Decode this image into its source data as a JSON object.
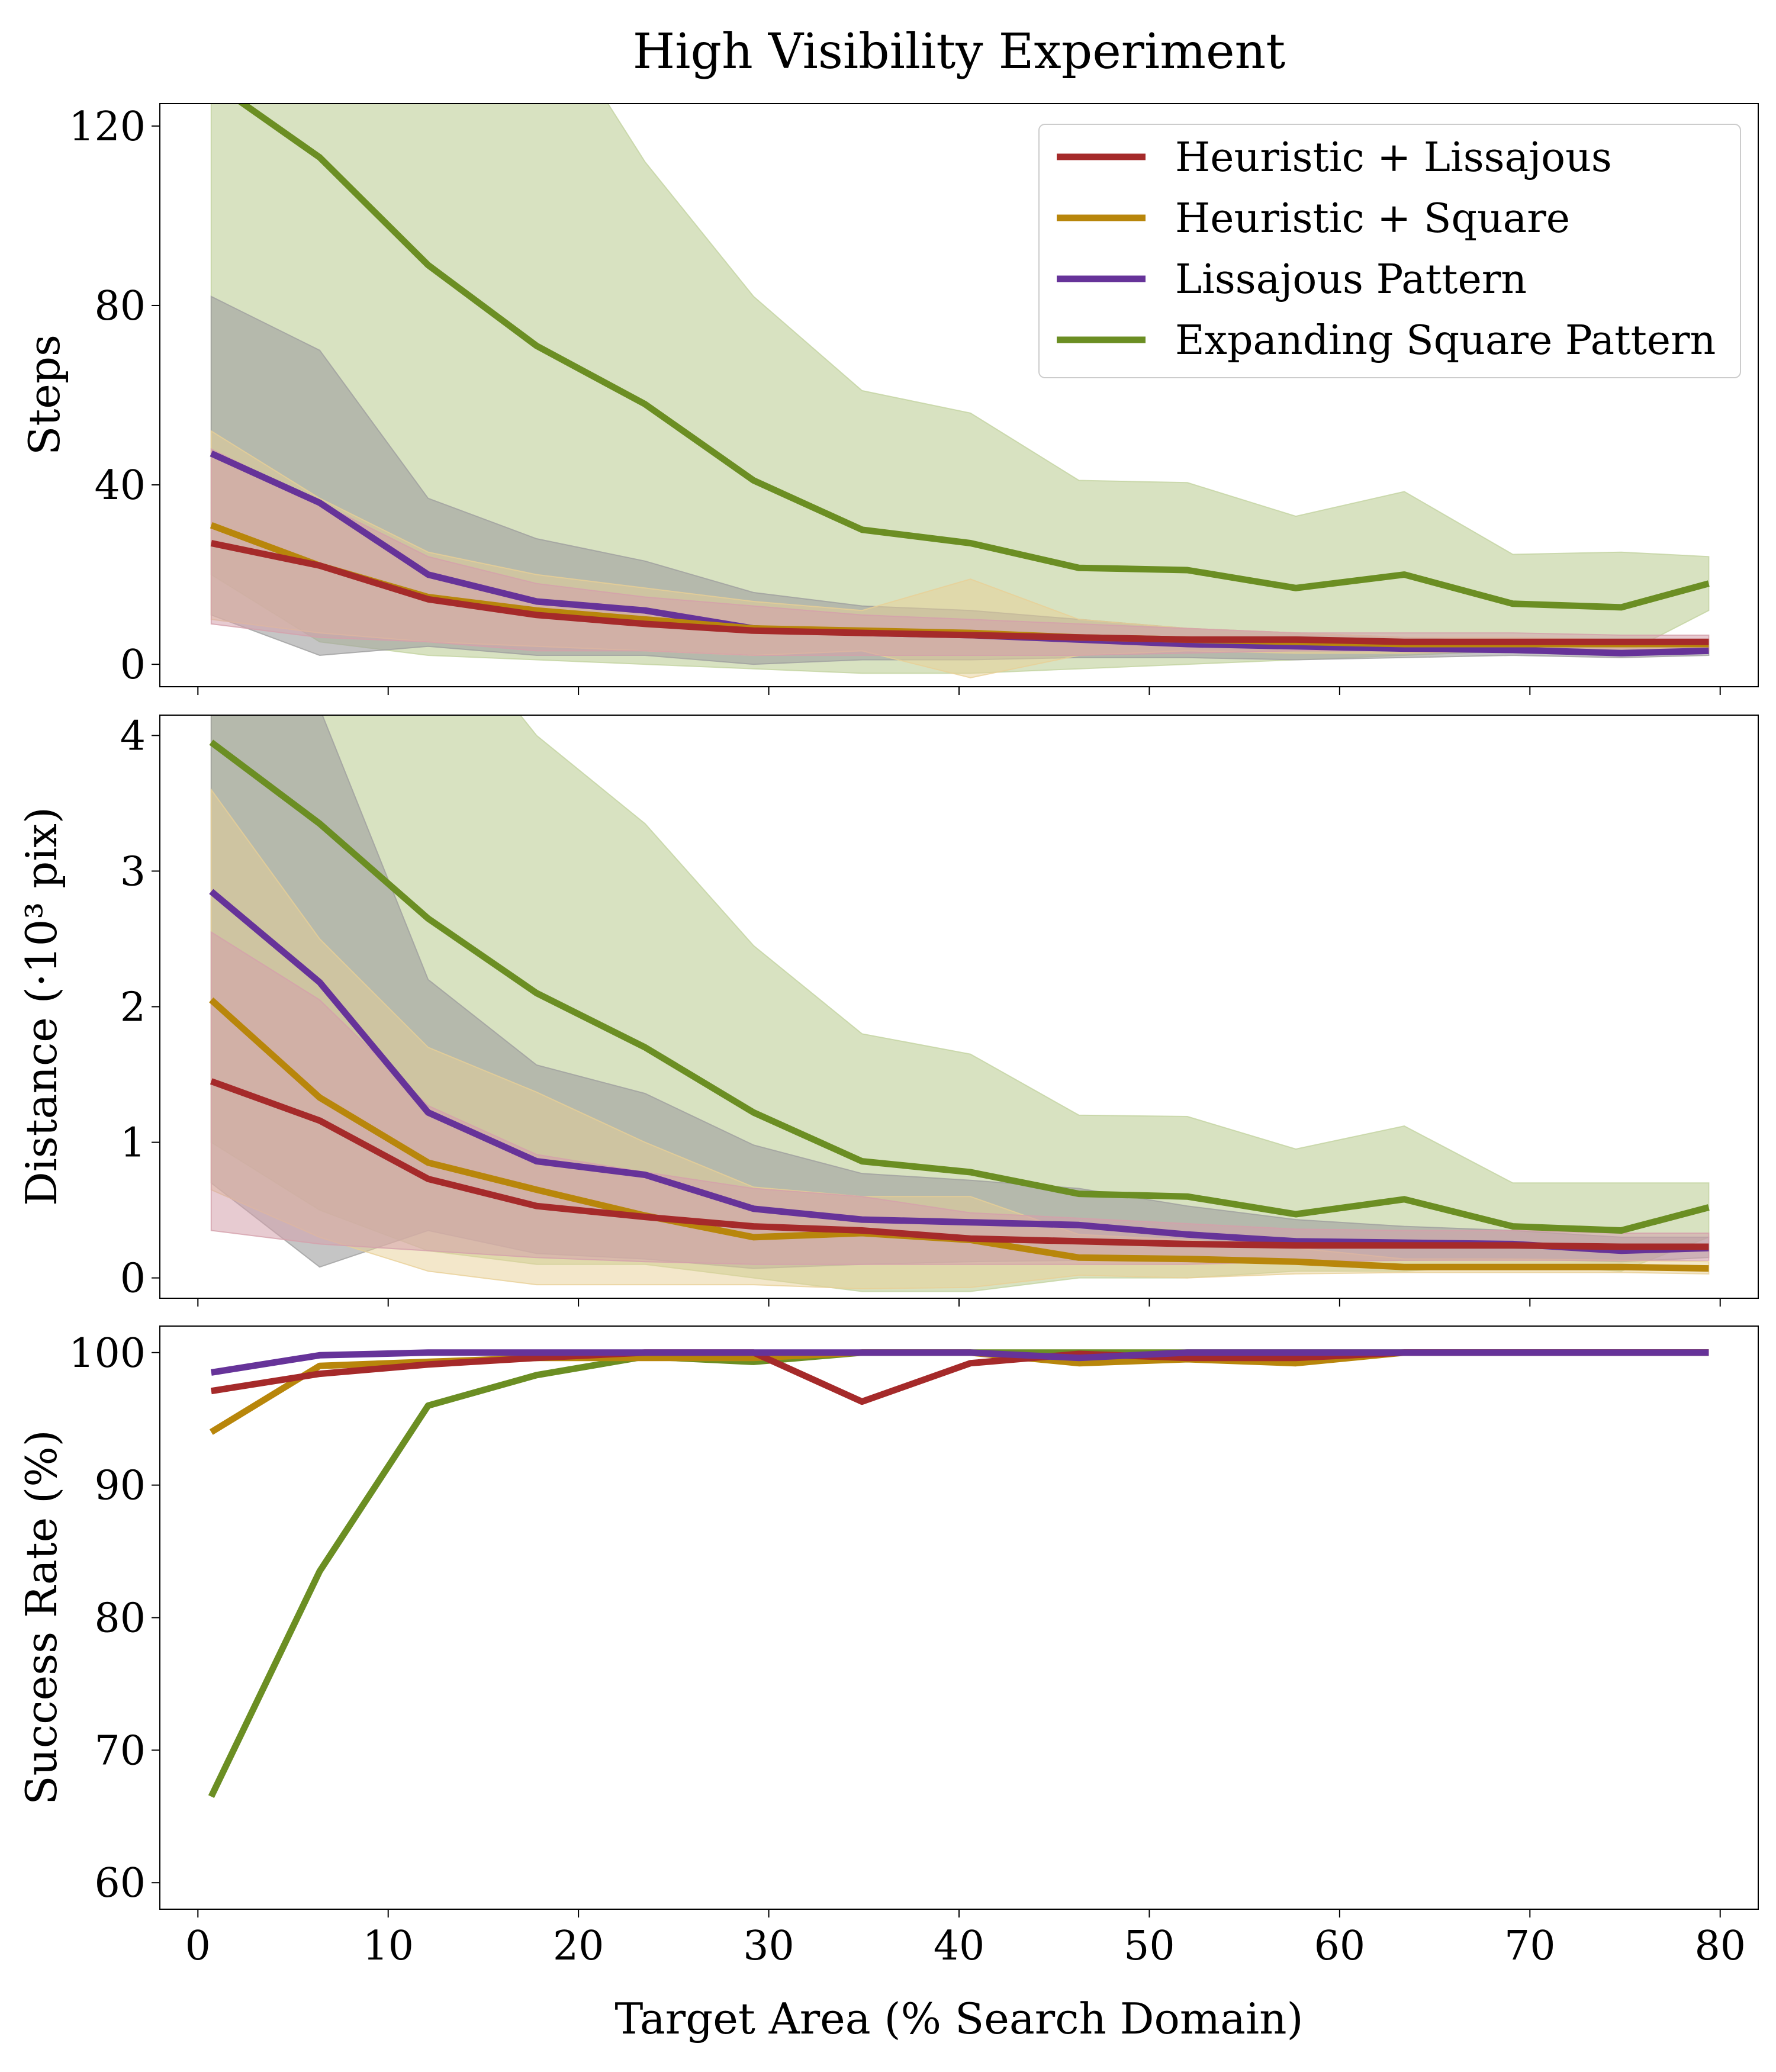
{
  "title": "High Visibility Experiment",
  "xlabel": "Target Area (% Search Domain)",
  "colors": {
    "heuristic_lissajous": "#a52a2a",
    "heuristic_square": "#b8860b",
    "lissajous": "#663399",
    "square": "#6b8e23",
    "band_heuristic_lissajous": "#d4a0ab",
    "band_heuristic_square": "#e8cf96",
    "band_lissajous": "#c3b5e0",
    "band_square": "#c3d3a0",
    "band_gray": "#9f9f9f"
  },
  "legend": [
    {
      "key": "heuristic_lissajous",
      "label": "Heuristic + Lissajous"
    },
    {
      "key": "heuristic_square",
      "label": "Heuristic + Square"
    },
    {
      "key": "lissajous",
      "label": "Lissajous Pattern"
    },
    {
      "key": "square",
      "label": "Expanding Square Pattern"
    }
  ],
  "chart_data": [
    {
      "type": "line",
      "title": "High Visibility Experiment",
      "ylabel": "Steps",
      "xlabel": "",
      "xlim": [
        -2,
        82
      ],
      "ylim": [
        -5,
        125
      ],
      "xticks": [
        0,
        10,
        20,
        30,
        40,
        50,
        60,
        70,
        80
      ],
      "yticks": [
        0,
        40,
        80,
        120
      ],
      "ytick_labels": [
        "0",
        "40",
        "80",
        "120"
      ],
      "show_xtick_labels": false,
      "legend_position": "top-right",
      "x": [
        0.7,
        6.4,
        12.1,
        17.8,
        23.5,
        29.2,
        34.9,
        40.6,
        46.3,
        52.0,
        57.7,
        63.4,
        69.1,
        74.8,
        79.4
      ],
      "series": [
        {
          "key": "square",
          "name": "Expanding Square Pattern",
          "values": [
            130,
            113,
            89,
            71,
            58,
            41,
            30,
            27,
            21.5,
            21,
            17,
            20,
            13.5,
            12.7,
            18
          ],
          "lower": [
            20,
            5,
            2,
            1,
            0,
            -1,
            -2,
            -2,
            -1,
            0,
            1,
            2,
            3,
            2,
            12
          ],
          "upper": [
            150,
            150,
            150,
            150,
            112,
            82,
            61,
            56,
            41,
            40.5,
            33,
            38.5,
            24.5,
            25,
            24
          ]
        },
        {
          "key": "lissajous",
          "name": "Lissajous Pattern",
          "values": [
            47,
            36,
            20,
            14,
            12,
            8,
            7,
            6.5,
            5.5,
            4.5,
            4,
            3.5,
            3.2,
            2.5,
            3
          ],
          "lower": [
            11,
            2,
            4,
            2,
            2,
            0,
            1,
            1,
            1.5,
            1.5,
            1,
            1.5,
            2,
            1.5,
            2
          ],
          "upper": [
            82,
            70,
            37,
            28,
            23,
            16,
            13,
            12,
            10,
            8,
            7,
            6,
            5,
            4,
            4
          ]
        },
        {
          "key": "heuristic_square",
          "name": "Heuristic + Square",
          "values": [
            31,
            22,
            15,
            12,
            10,
            8,
            7.5,
            7,
            6,
            5.5,
            5,
            4.5,
            4.5,
            4.5,
            4.5
          ],
          "lower": [
            10,
            7,
            5,
            4,
            3,
            2,
            3,
            -3,
            2,
            3,
            2.5,
            2.5,
            3,
            3.5,
            3.5
          ],
          "upper": [
            52,
            37,
            25,
            20,
            17,
            14,
            12,
            19,
            10,
            8,
            7,
            6,
            6,
            5.5,
            5.5
          ]
        },
        {
          "key": "heuristic_lissajous",
          "name": "Heuristic + Lissajous",
          "values": [
            27,
            22,
            14.5,
            11,
            9,
            7.5,
            7,
            6.5,
            6,
            5.5,
            5.5,
            5,
            5,
            5,
            5
          ],
          "lower": [
            9,
            6,
            5,
            3,
            3,
            2,
            2,
            2,
            2,
            2.5,
            3,
            3,
            3,
            3,
            3
          ],
          "upper": [
            48,
            36,
            24,
            18,
            15,
            13,
            11,
            10,
            9,
            8,
            7,
            7,
            7,
            6.5,
            6.5
          ]
        }
      ]
    },
    {
      "type": "line",
      "ylabel": "Distance (·10³ pix)",
      "xlabel": "",
      "xlim": [
        -2,
        82
      ],
      "ylim": [
        -0.15,
        4.15
      ],
      "xticks": [
        0,
        10,
        20,
        30,
        40,
        50,
        60,
        70,
        80
      ],
      "yticks": [
        0,
        1,
        2,
        3,
        4
      ],
      "ytick_labels": [
        "0",
        "1",
        "2",
        "3",
        "4"
      ],
      "show_xtick_labels": false,
      "x": [
        0.7,
        6.4,
        12.1,
        17.8,
        23.5,
        29.2,
        34.9,
        40.6,
        46.3,
        52.0,
        57.7,
        63.4,
        69.1,
        74.8,
        79.4
      ],
      "series": [
        {
          "key": "square",
          "name": "Expanding Square Pattern",
          "values": [
            3.95,
            3.35,
            2.65,
            2.1,
            1.7,
            1.22,
            0.86,
            0.78,
            0.62,
            0.6,
            0.47,
            0.58,
            0.38,
            0.35,
            0.52
          ],
          "lower": [
            1.0,
            0.5,
            0.2,
            0.1,
            0.1,
            0.0,
            -0.1,
            -0.1,
            0.0,
            0.0,
            0.05,
            0.05,
            0.1,
            0.05,
            0.3
          ],
          "upper": [
            6.5,
            6.0,
            5.0,
            4.0,
            3.35,
            2.45,
            1.8,
            1.65,
            1.2,
            1.19,
            0.95,
            1.12,
            0.7,
            0.7,
            0.7
          ]
        },
        {
          "key": "lissajous",
          "name": "Lissajous Pattern",
          "values": [
            2.85,
            2.18,
            1.22,
            0.86,
            0.76,
            0.51,
            0.43,
            0.41,
            0.39,
            0.32,
            0.27,
            0.26,
            0.25,
            0.2,
            0.22
          ],
          "lower": [
            0.7,
            0.08,
            0.35,
            0.18,
            0.14,
            0.07,
            0.1,
            0.12,
            0.13,
            0.12,
            0.12,
            0.13,
            0.14,
            0.12,
            0.15
          ],
          "upper": [
            5.0,
            4.2,
            2.2,
            1.57,
            1.36,
            0.98,
            0.77,
            0.72,
            0.66,
            0.53,
            0.43,
            0.38,
            0.35,
            0.3,
            0.3
          ]
        },
        {
          "key": "heuristic_square",
          "name": "Heuristic + Square",
          "values": [
            2.05,
            1.33,
            0.85,
            0.65,
            0.46,
            0.3,
            0.33,
            0.28,
            0.15,
            0.14,
            0.12,
            0.08,
            0.08,
            0.08,
            0.07
          ],
          "lower": [
            0.65,
            0.3,
            0.05,
            -0.05,
            -0.05,
            -0.05,
            -0.08,
            -0.07,
            0.02,
            0.0,
            0.03,
            0.04,
            0.04,
            0.04,
            0.03
          ],
          "upper": [
            3.6,
            2.5,
            1.7,
            1.37,
            1.0,
            0.67,
            0.6,
            0.6,
            0.32,
            0.28,
            0.22,
            0.14,
            0.14,
            0.13,
            0.12
          ]
        },
        {
          "key": "heuristic_lissajous",
          "name": "Heuristic + Lissajous",
          "values": [
            1.45,
            1.16,
            0.73,
            0.53,
            0.45,
            0.38,
            0.35,
            0.29,
            0.27,
            0.25,
            0.24,
            0.24,
            0.24,
            0.23,
            0.23
          ],
          "lower": [
            0.35,
            0.25,
            0.2,
            0.15,
            0.12,
            0.1,
            0.1,
            0.1,
            0.1,
            0.1,
            0.12,
            0.13,
            0.13,
            0.13,
            0.13
          ],
          "upper": [
            2.55,
            2.05,
            1.27,
            0.91,
            0.78,
            0.66,
            0.6,
            0.48,
            0.44,
            0.4,
            0.36,
            0.35,
            0.35,
            0.33,
            0.33
          ]
        }
      ]
    },
    {
      "type": "line",
      "ylabel": "Success Rate (%)",
      "xlabel": "Target Area (% Search Domain)",
      "xlim": [
        -2,
        82
      ],
      "ylim": [
        58,
        102
      ],
      "xticks": [
        0,
        10,
        20,
        30,
        40,
        50,
        60,
        70,
        80
      ],
      "xtick_labels": [
        "0",
        "10",
        "20",
        "30",
        "40",
        "50",
        "60",
        "70",
        "80"
      ],
      "yticks": [
        60,
        70,
        80,
        90,
        100
      ],
      "ytick_labels": [
        "60",
        "70",
        "80",
        "90",
        "100"
      ],
      "show_xtick_labels": true,
      "x": [
        0.7,
        6.4,
        12.1,
        17.8,
        23.5,
        29.2,
        34.9,
        40.6,
        46.3,
        52.0,
        57.7,
        63.4,
        69.1,
        74.8,
        79.4
      ],
      "series": [
        {
          "key": "square",
          "name": "Expanding Square Pattern",
          "values": [
            66.5,
            83.5,
            96,
            98.3,
            99.7,
            99.3,
            100,
            100,
            100,
            100,
            100,
            100,
            100,
            100,
            100
          ]
        },
        {
          "key": "heuristic_square",
          "name": "Heuristic + Square",
          "values": [
            94,
            99,
            99.3,
            99.6,
            99.6,
            99.6,
            100,
            100,
            99.2,
            99.5,
            99.2,
            100,
            100,
            100,
            100
          ]
        },
        {
          "key": "heuristic_lissajous",
          "name": "Heuristic + Lissajous",
          "values": [
            97.1,
            98.4,
            99.1,
            99.6,
            100,
            100,
            96.3,
            99.2,
            99.9,
            99.6,
            99.6,
            100,
            100,
            100,
            100
          ]
        },
        {
          "key": "lissajous",
          "name": "Lissajous Pattern",
          "values": [
            98.5,
            99.8,
            100,
            100,
            100,
            100,
            100,
            100,
            99.6,
            100,
            100,
            100,
            100,
            100,
            100
          ]
        }
      ]
    }
  ]
}
